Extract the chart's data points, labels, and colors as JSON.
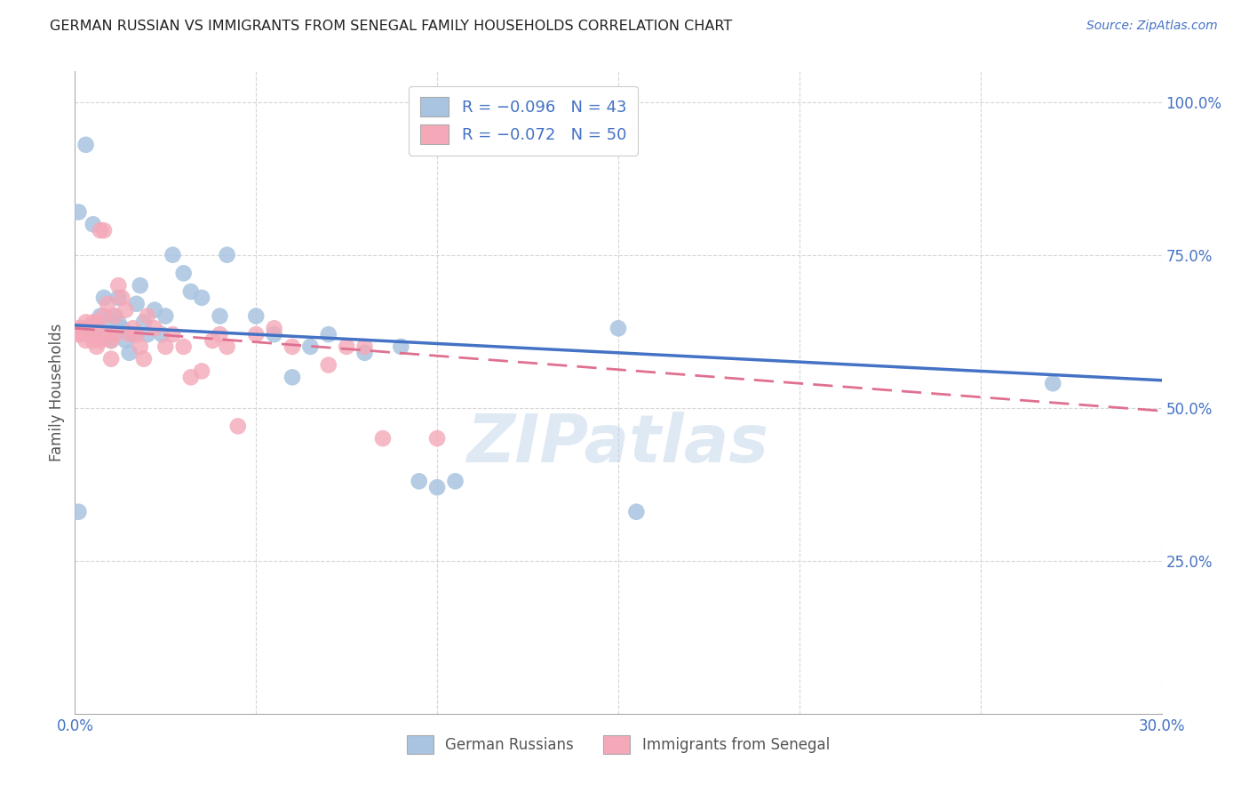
{
  "title": "GERMAN RUSSIAN VS IMMIGRANTS FROM SENEGAL FAMILY HOUSEHOLDS CORRELATION CHART",
  "source": "Source: ZipAtlas.com",
  "ylabel": "Family Households",
  "xlim": [
    0.0,
    0.3
  ],
  "ylim": [
    0.0,
    1.05
  ],
  "blue_color": "#a8c4e0",
  "pink_color": "#f4a8b8",
  "blue_line_color": "#4472c4",
  "pink_line_color": "#e07090",
  "watermark": "ZIPatlas",
  "background_color": "#ffffff",
  "grid_color": "#cccccc",
  "blue_scatter_x": [
    0.001,
    0.001,
    0.003,
    0.004,
    0.005,
    0.006,
    0.007,
    0.008,
    0.009,
    0.01,
    0.011,
    0.012,
    0.012,
    0.013,
    0.014,
    0.015,
    0.016,
    0.017,
    0.018,
    0.019,
    0.02,
    0.022,
    0.024,
    0.025,
    0.027,
    0.03,
    0.032,
    0.035,
    0.04,
    0.042,
    0.05,
    0.055,
    0.06,
    0.065,
    0.07,
    0.08,
    0.09,
    0.095,
    0.1,
    0.105,
    0.15,
    0.155,
    0.27
  ],
  "blue_scatter_y": [
    0.33,
    0.82,
    0.93,
    0.63,
    0.8,
    0.63,
    0.65,
    0.68,
    0.64,
    0.61,
    0.65,
    0.64,
    0.68,
    0.63,
    0.61,
    0.59,
    0.62,
    0.67,
    0.7,
    0.64,
    0.62,
    0.66,
    0.62,
    0.65,
    0.75,
    0.72,
    0.69,
    0.68,
    0.65,
    0.75,
    0.65,
    0.62,
    0.55,
    0.6,
    0.62,
    0.59,
    0.6,
    0.38,
    0.37,
    0.38,
    0.63,
    0.33,
    0.54
  ],
  "pink_scatter_x": [
    0.001,
    0.001,
    0.002,
    0.002,
    0.003,
    0.003,
    0.004,
    0.004,
    0.005,
    0.005,
    0.006,
    0.006,
    0.006,
    0.007,
    0.007,
    0.008,
    0.008,
    0.009,
    0.009,
    0.01,
    0.01,
    0.011,
    0.011,
    0.012,
    0.013,
    0.014,
    0.015,
    0.016,
    0.017,
    0.018,
    0.019,
    0.02,
    0.022,
    0.025,
    0.027,
    0.03,
    0.032,
    0.035,
    0.038,
    0.04,
    0.042,
    0.045,
    0.05,
    0.055,
    0.06,
    0.07,
    0.075,
    0.08,
    0.085,
    0.1
  ],
  "pink_scatter_y": [
    0.62,
    0.63,
    0.62,
    0.63,
    0.61,
    0.64,
    0.62,
    0.63,
    0.64,
    0.61,
    0.6,
    0.62,
    0.64,
    0.61,
    0.79,
    0.79,
    0.65,
    0.67,
    0.62,
    0.58,
    0.61,
    0.65,
    0.62,
    0.7,
    0.68,
    0.66,
    0.62,
    0.63,
    0.62,
    0.6,
    0.58,
    0.65,
    0.63,
    0.6,
    0.62,
    0.6,
    0.55,
    0.56,
    0.61,
    0.62,
    0.6,
    0.47,
    0.62,
    0.63,
    0.6,
    0.57,
    0.6,
    0.6,
    0.45,
    0.45
  ],
  "blue_line_x": [
    0.0,
    0.3
  ],
  "blue_line_y": [
    0.635,
    0.545
  ],
  "pink_line_x": [
    0.0,
    0.3
  ],
  "pink_line_y": [
    0.63,
    0.495
  ]
}
